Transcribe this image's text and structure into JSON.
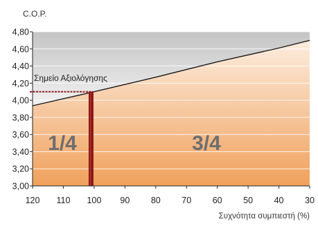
{
  "chart_data": {
    "type": "line",
    "title": "",
    "ylabel": "C.O.P.",
    "xlabel": "Συχνότητα συμπιεστή (%)",
    "x_reversed": true,
    "xlim": [
      120,
      30
    ],
    "ylim": [
      3.0,
      4.8
    ],
    "x_ticks": [
      120,
      110,
      100,
      90,
      80,
      70,
      60,
      50,
      40,
      30
    ],
    "y_ticks": [
      3.0,
      3.2,
      3.4,
      3.6,
      3.8,
      4.0,
      4.2,
      4.4,
      4.6,
      4.8
    ],
    "y_tick_labels": [
      "3,00",
      "3,20",
      "3,40",
      "3,60",
      "3,80",
      "4,00",
      "4,20",
      "4,40",
      "4,60",
      "4,80"
    ],
    "grid": "horizontal",
    "series": [
      {
        "x": [
          122,
          100,
          80,
          60,
          40,
          30
        ],
        "y": [
          3.92,
          4.1,
          4.27,
          4.45,
          4.61,
          4.7
        ]
      }
    ],
    "annotations": {
      "rating_point_label": "Σημείο Αξιολόγησης",
      "rating_point": {
        "x": 101,
        "y": 4.1
      },
      "left_region_label": "1/4",
      "right_region_label": "3/4"
    },
    "colors": {
      "curve": "#1a1a1a",
      "marker": "#8b1a1a",
      "area_top": "#fdf1e6",
      "area_bottom": "#f0a15c",
      "upper_top": "#c4c4c4",
      "upper_bottom": "#f1f1f1",
      "region_label": "#6e6e6e",
      "grid": "#ffffff"
    }
  }
}
